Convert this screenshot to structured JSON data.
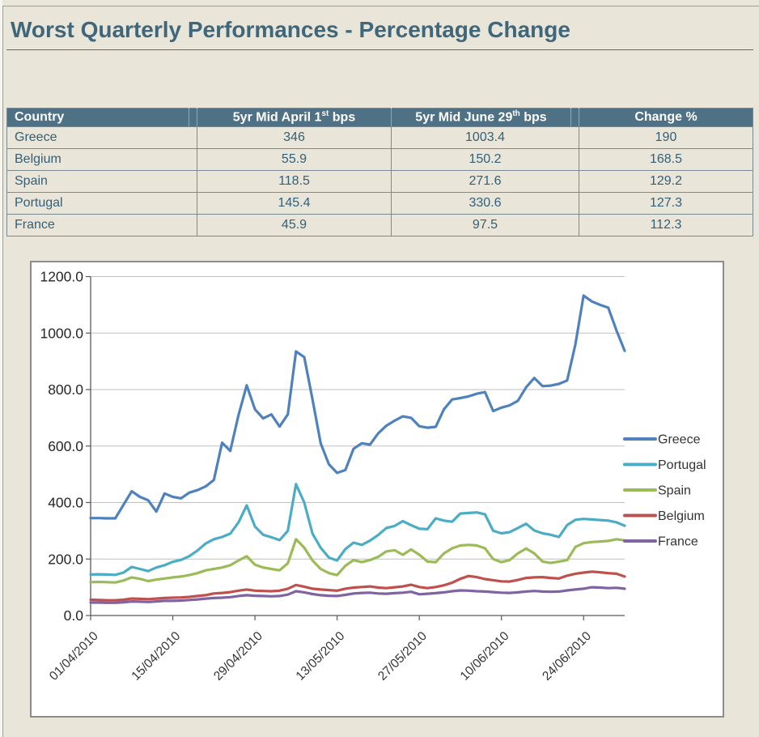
{
  "page": {
    "title": "Worst Quarterly Performances - Percentage Change"
  },
  "table": {
    "header": {
      "country": "Country",
      "april_pre": "5yr Mid April 1",
      "april_sup": "st",
      "april_post": " bps",
      "june_pre": "5yr Mid June 29",
      "june_sup": "th",
      "june_post": " bps",
      "change": "Change %"
    },
    "rows": [
      {
        "country": "Greece",
        "april": "346",
        "june": "1003.4",
        "change": "190"
      },
      {
        "country": "Belgium",
        "april": "55.9",
        "june": "150.2",
        "change": "168.5"
      },
      {
        "country": "Spain",
        "april": "118.5",
        "june": "271.6",
        "change": "129.2"
      },
      {
        "country": "Portugal",
        "april": "145.4",
        "june": "330.6",
        "change": "127.3"
      },
      {
        "country": "France",
        "april": "45.9",
        "june": "97.5",
        "change": "112.3"
      }
    ]
  },
  "chart_data": {
    "type": "line",
    "title": "",
    "xlabel": "",
    "ylabel": "",
    "ylim": [
      0,
      1200
    ],
    "y_tick_step": 200,
    "y_tick_labels": [
      "0.0",
      "200.0",
      "400.0",
      "600.0",
      "800.0",
      "1000.0",
      "1200.0"
    ],
    "grid": true,
    "legend_position": "right",
    "n_points": 66,
    "x_tick_indices": [
      0,
      10,
      20,
      30,
      40,
      50,
      60
    ],
    "x_tick_labels": [
      "01/04/2010",
      "15/04/2010",
      "29/04/2010",
      "13/05/2010",
      "27/05/2010",
      "10/06/2010",
      "24/06/2010"
    ],
    "series": [
      {
        "name": "Greece",
        "color": "#4F81BD",
        "values": [
          345,
          345,
          344,
          344,
          392,
          440,
          420,
          408,
          368,
          432,
          420,
          415,
          435,
          444,
          457,
          480,
          612,
          583,
          710,
          815,
          730,
          698,
          712,
          669,
          712,
          935,
          915,
          765,
          610,
          535,
          505,
          515,
          590,
          610,
          605,
          645,
          672,
          690,
          705,
          700,
          670,
          665,
          668,
          730,
          765,
          770,
          776,
          785,
          791,
          724,
          736,
          744,
          760,
          808,
          841,
          812,
          814,
          820,
          832,
          960,
          1133,
          1112,
          1100,
          1090,
          1010,
          937
        ]
      },
      {
        "name": "Portugal",
        "color": "#4BACC6",
        "values": [
          145,
          146,
          145,
          144,
          152,
          172,
          165,
          157,
          170,
          178,
          190,
          197,
          210,
          230,
          255,
          270,
          278,
          290,
          330,
          390,
          315,
          286,
          277,
          267,
          300,
          465,
          400,
          290,
          240,
          205,
          195,
          235,
          258,
          250,
          265,
          285,
          310,
          317,
          334,
          320,
          307,
          306,
          344,
          336,
          332,
          361,
          363,
          365,
          358,
          300,
          291,
          295,
          310,
          325,
          301,
          291,
          286,
          278,
          320,
          339,
          342,
          340,
          338,
          336,
          330,
          318
        ]
      },
      {
        "name": "Spain",
        "color": "#9BBB59",
        "values": [
          118,
          119,
          118,
          117,
          124,
          135,
          130,
          122,
          127,
          131,
          135,
          138,
          143,
          150,
          160,
          165,
          170,
          178,
          195,
          210,
          180,
          170,
          165,
          160,
          185,
          270,
          240,
          195,
          165,
          150,
          143,
          176,
          196,
          189,
          196,
          208,
          227,
          231,
          215,
          234,
          215,
          191,
          189,
          220,
          238,
          248,
          250,
          248,
          238,
          200,
          189,
          196,
          220,
          237,
          220,
          191,
          186,
          191,
          196,
          243,
          256,
          260,
          262,
          264,
          270,
          266
        ]
      },
      {
        "name": "Belgium",
        "color": "#C0504D",
        "values": [
          56,
          55,
          54,
          54,
          56,
          60,
          59,
          58,
          60,
          62,
          63,
          64,
          66,
          69,
          72,
          78,
          80,
          83,
          88,
          92,
          88,
          87,
          86,
          88,
          95,
          108,
          102,
          95,
          92,
          90,
          88,
          95,
          99,
          101,
          103,
          99,
          97,
          100,
          103,
          109,
          101,
          97,
          101,
          107,
          116,
          130,
          140,
          136,
          129,
          125,
          121,
          120,
          126,
          133,
          135,
          136,
          133,
          131,
          141,
          148,
          152,
          155,
          153,
          150,
          148,
          138
        ]
      },
      {
        "name": "France",
        "color": "#8064A2",
        "values": [
          46,
          46,
          45,
          45,
          47,
          50,
          49,
          48,
          50,
          52,
          52,
          53,
          55,
          57,
          60,
          62,
          63,
          65,
          69,
          72,
          70,
          69,
          68,
          69,
          74,
          86,
          82,
          76,
          72,
          70,
          69,
          73,
          78,
          80,
          81,
          78,
          77,
          79,
          81,
          84,
          75,
          77,
          79,
          82,
          86,
          89,
          88,
          86,
          85,
          83,
          81,
          80,
          82,
          85,
          87,
          85,
          84,
          85,
          89,
          92,
          95,
          100,
          99,
          97,
          98,
          95
        ]
      }
    ]
  },
  "colors": {
    "page_bg": "#E9E5D9",
    "title_text": "#3E677C",
    "header_bg": "#4E7186",
    "header_text": "#FFFFFF",
    "row_text": "#336077",
    "table_border": "#7A8A94",
    "panel_border": "#8C8C8C",
    "axis": "#595959",
    "gridline": "#BFBFBF",
    "axis_label_text": "#262626",
    "legend_text": "#333333"
  }
}
